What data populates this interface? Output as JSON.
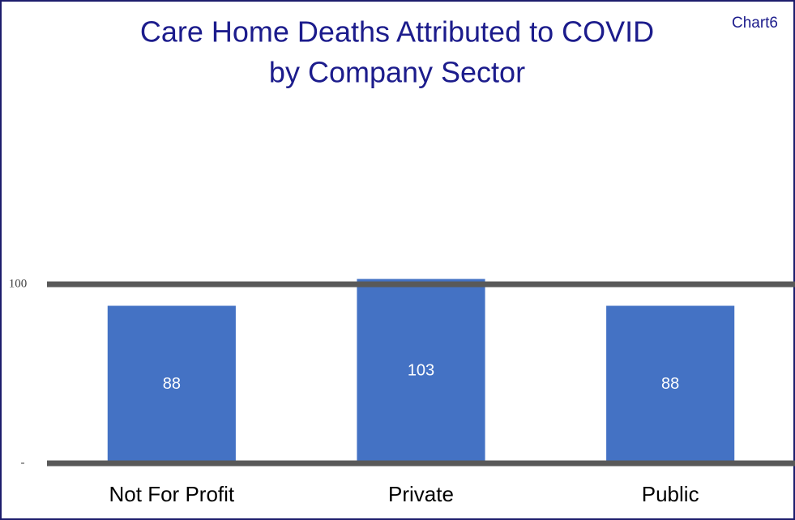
{
  "chart_data": {
    "type": "bar",
    "title": [
      "Care Home Deaths Attributed to COVID",
      "by Company Sector"
    ],
    "sheet_label": "Chart6",
    "categories": [
      "Not For Profit",
      "Private",
      "Public"
    ],
    "values": [
      88,
      103,
      88
    ],
    "color": "#4472c4",
    "ylim": [
      0,
      200
    ],
    "yticks": [
      {
        "value": 0,
        "label": "-"
      },
      100
    ],
    "grid": true
  }
}
